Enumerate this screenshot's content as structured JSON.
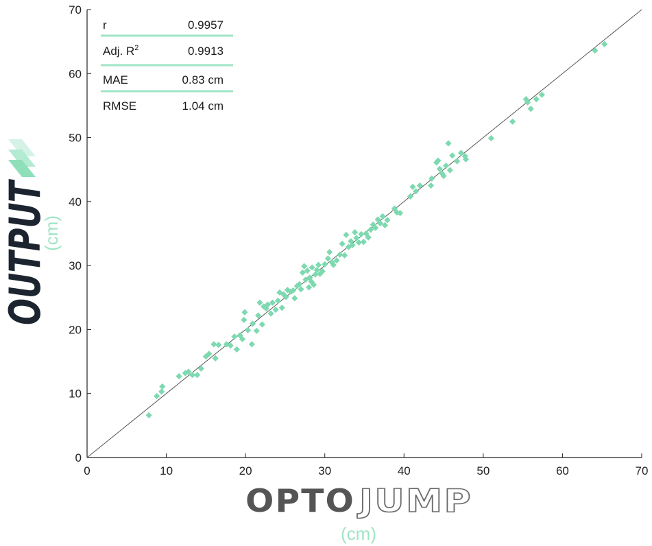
{
  "chart_data": {
    "type": "scatter",
    "xlabel": "(cm)",
    "ylabel": "(cm)",
    "xlim": [
      0,
      70
    ],
    "ylim": [
      0,
      70
    ],
    "x_ticks": [
      "0",
      "10",
      "20",
      "30",
      "40",
      "50",
      "60",
      "70"
    ],
    "y_ticks": [
      "0",
      "10",
      "20",
      "30",
      "40",
      "50",
      "60",
      "70"
    ],
    "grid": false,
    "identity_line": true,
    "point_color": "#7ed9b0",
    "accent_color": "#9fe5c6",
    "stats": [
      {
        "label": "r",
        "value": "0.9957"
      },
      {
        "label": "Adj. R",
        "sup": "2",
        "value": "0.9913"
      },
      {
        "label": "MAE",
        "value": "0.83 cm"
      },
      {
        "label": "RMSE",
        "value": "1.04 cm"
      }
    ],
    "points": [
      [
        7.8,
        6.6
      ],
      [
        8.8,
        9.6
      ],
      [
        9.4,
        10.3
      ],
      [
        9.5,
        11.1
      ],
      [
        11.6,
        12.7
      ],
      [
        12.4,
        13.2
      ],
      [
        12.8,
        13.4
      ],
      [
        13.3,
        12.9
      ],
      [
        13.9,
        12.9
      ],
      [
        14.4,
        13.9
      ],
      [
        15.0,
        15.8
      ],
      [
        15.4,
        16.2
      ],
      [
        16.0,
        17.7
      ],
      [
        16.2,
        15.5
      ],
      [
        16.6,
        17.6
      ],
      [
        17.6,
        17.7
      ],
      [
        18.1,
        17.5
      ],
      [
        18.6,
        18.9
      ],
      [
        18.9,
        16.9
      ],
      [
        19.3,
        19.1
      ],
      [
        19.6,
        18.5
      ],
      [
        19.8,
        21.5
      ],
      [
        19.9,
        22.7
      ],
      [
        20.3,
        19.9
      ],
      [
        20.8,
        17.7
      ],
      [
        20.9,
        20.9
      ],
      [
        21.4,
        19.8
      ],
      [
        21.6,
        22.2
      ],
      [
        21.8,
        24.2
      ],
      [
        22.1,
        20.8
      ],
      [
        22.3,
        23.6
      ],
      [
        22.6,
        23.3
      ],
      [
        22.8,
        23.9
      ],
      [
        23.2,
        22.5
      ],
      [
        23.4,
        24.2
      ],
      [
        23.8,
        23.1
      ],
      [
        24.1,
        24.5
      ],
      [
        24.3,
        25.8
      ],
      [
        24.6,
        23.4
      ],
      [
        24.8,
        25.5
      ],
      [
        25.1,
        25.1
      ],
      [
        25.3,
        26.2
      ],
      [
        25.7,
        25.9
      ],
      [
        26.0,
        26.1
      ],
      [
        26.2,
        24.9
      ],
      [
        26.5,
        26.8
      ],
      [
        26.8,
        27.1
      ],
      [
        27.0,
        26.3
      ],
      [
        27.2,
        28.9
      ],
      [
        27.4,
        29.9
      ],
      [
        27.6,
        27.8
      ],
      [
        27.8,
        29.2
      ],
      [
        28.0,
        26.6
      ],
      [
        28.1,
        28.1
      ],
      [
        28.3,
        27.5
      ],
      [
        28.4,
        29.7
      ],
      [
        28.6,
        27.0
      ],
      [
        28.8,
        28.6
      ],
      [
        29.0,
        29.3
      ],
      [
        29.2,
        30.1
      ],
      [
        29.4,
        28.7
      ],
      [
        29.7,
        29.1
      ],
      [
        30.0,
        30.2
      ],
      [
        30.4,
        31.1
      ],
      [
        30.6,
        32.1
      ],
      [
        30.9,
        30.5
      ],
      [
        31.1,
        30.1
      ],
      [
        31.5,
        30.8
      ],
      [
        31.9,
        31.7
      ],
      [
        32.2,
        33.4
      ],
      [
        32.5,
        31.6
      ],
      [
        32.7,
        34.8
      ],
      [
        33.0,
        32.9
      ],
      [
        33.3,
        33.8
      ],
      [
        33.5,
        33.2
      ],
      [
        33.8,
        35.2
      ],
      [
        34.0,
        34.3
      ],
      [
        34.3,
        33.6
      ],
      [
        34.6,
        34.9
      ],
      [
        34.9,
        33.7
      ],
      [
        35.2,
        35.0
      ],
      [
        35.5,
        34.4
      ],
      [
        35.8,
        35.6
      ],
      [
        36.1,
        36.4
      ],
      [
        36.4,
        35.9
      ],
      [
        36.7,
        37.2
      ],
      [
        37.0,
        36.6
      ],
      [
        37.3,
        37.7
      ],
      [
        37.6,
        36.3
      ],
      [
        37.9,
        37.1
      ],
      [
        38.8,
        38.9
      ],
      [
        39.1,
        38.3
      ],
      [
        39.5,
        38.2
      ],
      [
        40.8,
        40.8
      ],
      [
        41.1,
        42.3
      ],
      [
        41.5,
        41.6
      ],
      [
        42.0,
        42.5
      ],
      [
        43.4,
        42.5
      ],
      [
        43.5,
        43.6
      ],
      [
        44.1,
        46.1
      ],
      [
        44.3,
        46.4
      ],
      [
        44.5,
        45.1
      ],
      [
        44.8,
        44.4
      ],
      [
        45.0,
        44.0
      ],
      [
        45.3,
        45.6
      ],
      [
        45.6,
        49.1
      ],
      [
        45.8,
        44.9
      ],
      [
        46.1,
        47.2
      ],
      [
        46.7,
        46.3
      ],
      [
        47.2,
        47.6
      ],
      [
        47.7,
        47.1
      ],
      [
        47.8,
        46.6
      ],
      [
        51.0,
        49.9
      ],
      [
        53.7,
        52.5
      ],
      [
        55.4,
        56.0
      ],
      [
        55.6,
        55.5
      ],
      [
        56.0,
        54.5
      ],
      [
        56.7,
        56.0
      ],
      [
        57.4,
        56.7
      ],
      [
        64.1,
        63.6
      ],
      [
        65.3,
        64.6
      ]
    ]
  }
}
